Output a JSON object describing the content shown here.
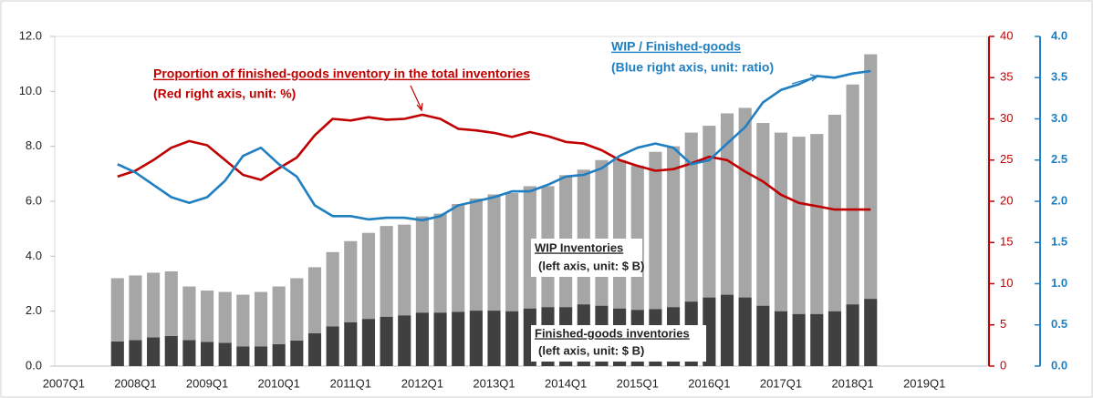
{
  "chart_data": {
    "type": "bar-line",
    "categories": [
      "2007Q1",
      null,
      null,
      null,
      "2008Q1",
      null,
      null,
      null,
      "2009Q1",
      null,
      null,
      null,
      "2010Q1",
      null,
      null,
      null,
      "2011Q1",
      null,
      null,
      null,
      "2012Q1",
      null,
      null,
      null,
      "2013Q1",
      null,
      null,
      null,
      "2014Q1",
      null,
      null,
      null,
      "2015Q1",
      null,
      null,
      null,
      "2016Q1",
      null,
      null,
      null,
      "2017Q1",
      null,
      null,
      null,
      "2018Q1",
      null,
      null,
      null,
      "2019Q1",
      null,
      null,
      null
    ],
    "series": [
      {
        "name": "Finished-goods inventories",
        "type": "bar",
        "color": "#404040",
        "axis": "y",
        "values": [
          null,
          null,
          null,
          0.9,
          0.95,
          1.05,
          1.1,
          0.95,
          0.88,
          0.85,
          0.72,
          0.72,
          0.8,
          0.93,
          1.2,
          1.45,
          1.6,
          1.72,
          1.8,
          1.85,
          1.95,
          1.95,
          1.98,
          2.02,
          2.02,
          2.0,
          2.1,
          2.15,
          2.15,
          2.25,
          2.2,
          2.1,
          2.05,
          2.08,
          2.15,
          2.35,
          2.5,
          2.6,
          2.5,
          2.2,
          2.0,
          1.9,
          1.9,
          2.0,
          2.25,
          2.45,
          null,
          null,
          null,
          null,
          null,
          null
        ]
      },
      {
        "name": "WIP Inventories",
        "type": "bar",
        "color": "#a6a6a6",
        "axis": "y",
        "values": [
          null,
          null,
          null,
          2.3,
          2.35,
          2.35,
          2.35,
          1.95,
          1.87,
          1.85,
          1.88,
          1.98,
          2.1,
          2.27,
          2.4,
          2.7,
          2.95,
          3.13,
          3.3,
          3.3,
          3.5,
          3.6,
          3.92,
          4.08,
          4.23,
          4.3,
          4.45,
          4.4,
          4.8,
          4.9,
          5.3,
          5.4,
          5.25,
          5.72,
          5.85,
          6.15,
          6.25,
          6.6,
          6.9,
          6.65,
          6.5,
          6.45,
          6.55,
          7.15,
          8.0,
          8.9,
          null,
          null,
          null,
          null,
          null,
          null
        ]
      },
      {
        "name": "Proportion of finished-goods inventory in the total inventories",
        "type": "line",
        "color": "#c00000",
        "axis": "y2",
        "values": [
          null,
          null,
          null,
          23,
          23.7,
          25,
          26.5,
          27.3,
          26.8,
          25,
          23.2,
          22.6,
          24,
          25.3,
          28,
          30,
          29.8,
          30.2,
          29.9,
          30,
          30.5,
          30,
          28.8,
          28.6,
          28.3,
          27.8,
          28.4,
          27.9,
          27.2,
          27,
          26.2,
          25,
          24.3,
          23.7,
          23.9,
          24.6,
          25.4,
          25,
          23.6,
          22.4,
          20.8,
          19.8,
          19.4,
          19,
          19,
          19,
          null,
          null,
          null,
          null,
          null,
          null
        ]
      },
      {
        "name": "WIP / Finished-goods",
        "type": "line",
        "color": "#1f7fc0",
        "axis": "y3",
        "values": [
          null,
          null,
          null,
          2.45,
          2.35,
          2.2,
          2.05,
          1.98,
          2.05,
          2.25,
          2.55,
          2.65,
          2.45,
          2.3,
          1.95,
          1.82,
          1.82,
          1.78,
          1.8,
          1.8,
          1.77,
          1.82,
          1.95,
          2.0,
          2.05,
          2.12,
          2.12,
          2.2,
          2.3,
          2.32,
          2.4,
          2.55,
          2.65,
          2.7,
          2.65,
          2.45,
          2.5,
          2.7,
          2.9,
          3.2,
          3.35,
          3.42,
          3.52,
          3.5,
          3.55,
          3.58,
          null,
          null,
          null,
          null,
          null,
          null
        ]
      }
    ],
    "annotations": [
      "(Red right axis, unit: %)",
      "(Blue right axis, unit: ratio)",
      "(left  axis, unit: $ B)",
      "(left  axis, unit: $ B)"
    ],
    "ylim": [
      0,
      12
    ],
    "yticks": [
      {
        "value": 0,
        "label": "0.0"
      },
      {
        "value": 2,
        "label": "2.0"
      },
      {
        "value": 4,
        "label": "4.0"
      },
      {
        "value": 6,
        "label": "6.0"
      },
      {
        "value": 8,
        "label": "8.0"
      },
      {
        "value": 10,
        "label": "10.0"
      },
      {
        "value": 12,
        "label": "12.0"
      }
    ],
    "y2lim": [
      0,
      40
    ],
    "y2ticks": [
      0,
      5,
      10,
      15,
      20,
      25,
      30,
      35,
      40
    ],
    "y3lim": [
      0,
      4
    ],
    "y3ticks": [
      {
        "value": 0,
        "label": "0.0"
      },
      {
        "value": 0.5,
        "label": "0.5"
      },
      {
        "value": 1,
        "label": "1.0"
      },
      {
        "value": 1.5,
        "label": "1.5"
      },
      {
        "value": 2,
        "label": "2.0"
      },
      {
        "value": 2.5,
        "label": "2.5"
      },
      {
        "value": 3,
        "label": "3.0"
      },
      {
        "value": 3.5,
        "label": "3.5"
      },
      {
        "value": 4,
        "label": "4.0"
      }
    ],
    "grid": false
  }
}
